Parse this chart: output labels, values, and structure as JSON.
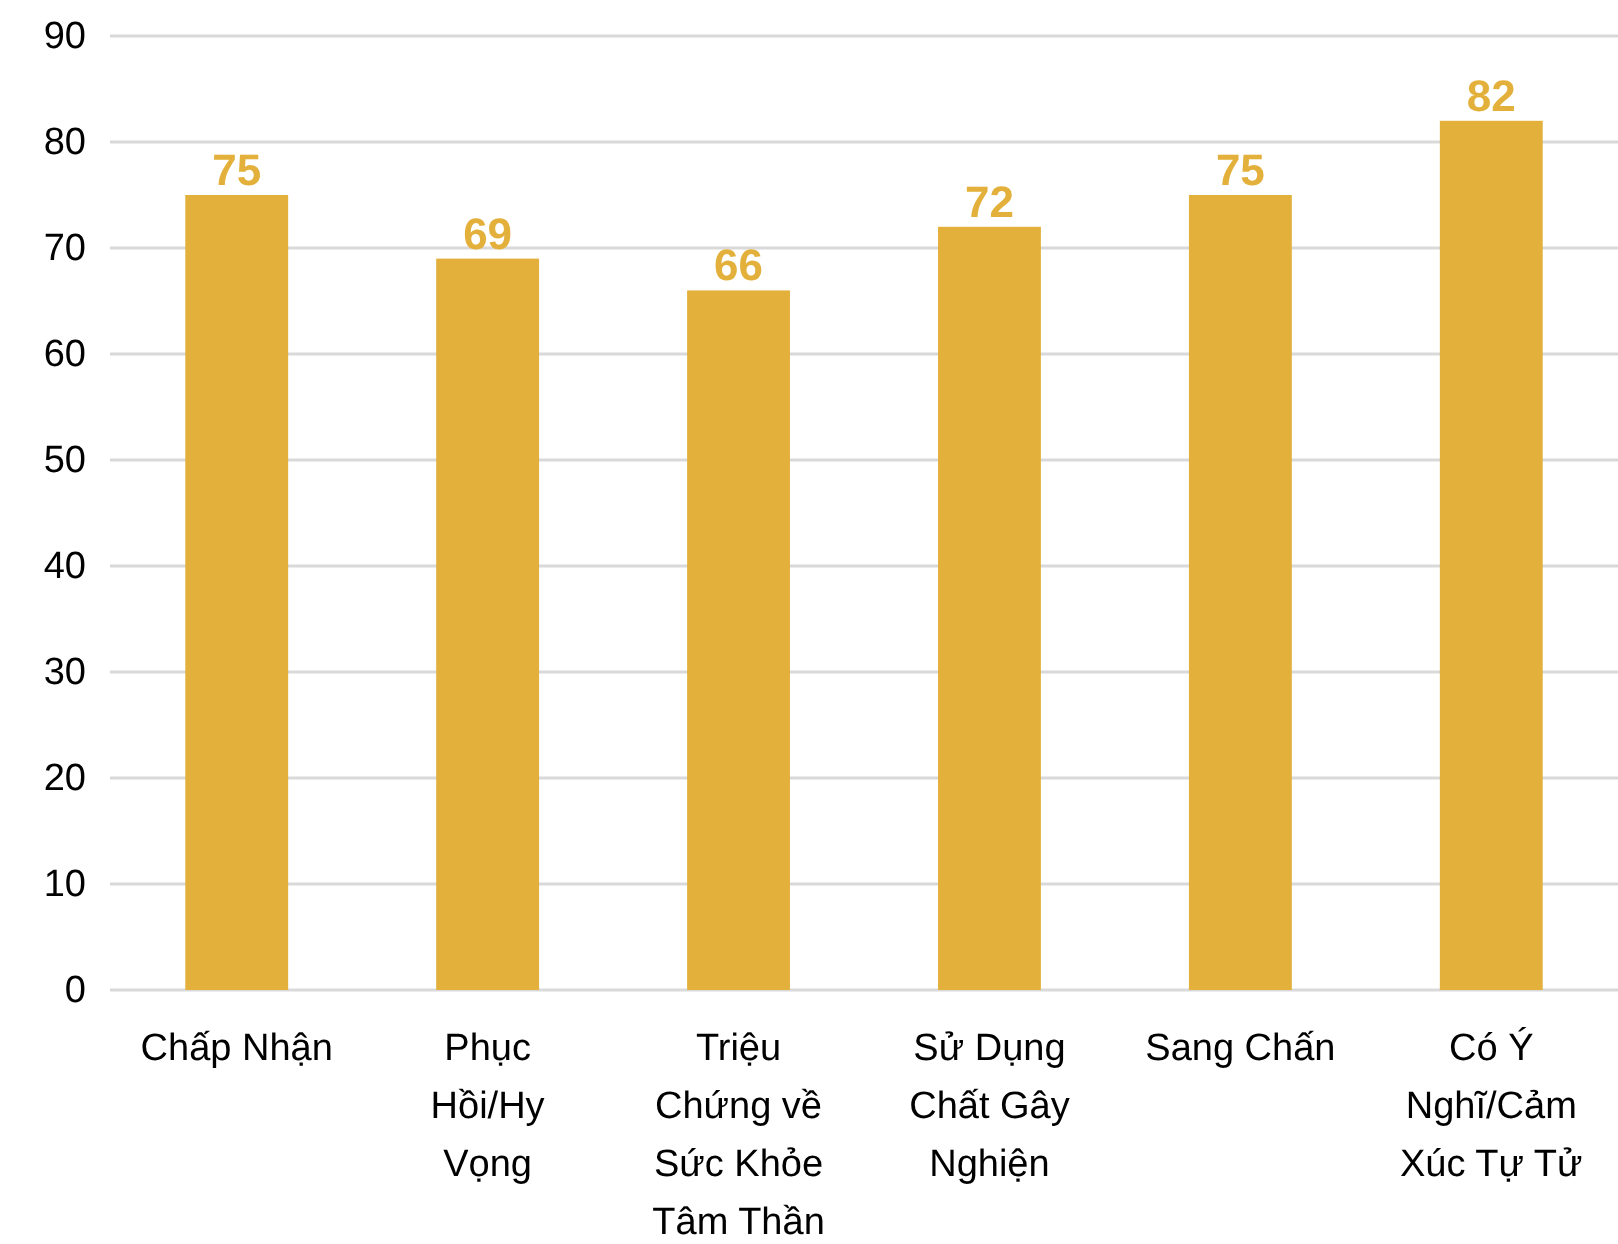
{
  "chart_data": {
    "type": "bar",
    "categories": [
      "Chấp Nhận",
      "Phục Hồi/Hy Vọng",
      "Triệu Chứng về Sức Khỏe Tâm Thần",
      "Sử Dụng Chất Gây Nghiện",
      "Sang Chấn",
      "Có Ý Nghĩ/Cảm Xúc Tự Tử"
    ],
    "values": [
      75,
      69,
      66,
      72,
      75,
      82
    ],
    "color": "#e3b13b",
    "ylim": [
      0,
      90
    ],
    "yticks": [
      0,
      10,
      20,
      30,
      40,
      50,
      60,
      70,
      80,
      90
    ],
    "grid": "y",
    "data_labels": true
  }
}
